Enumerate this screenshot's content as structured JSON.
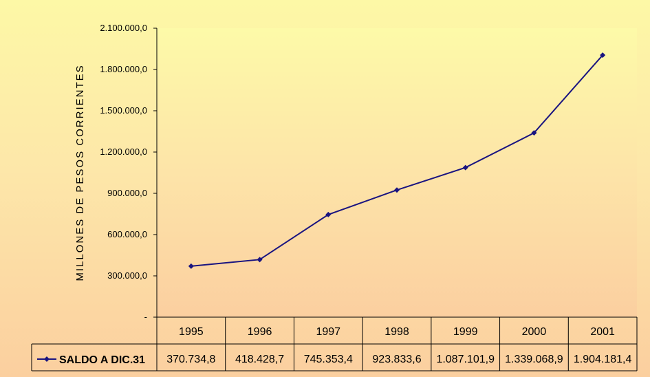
{
  "chart_data": {
    "type": "line",
    "title": "",
    "xlabel": "",
    "ylabel": "MILLONES DE PESOS CORRIENTES",
    "categories": [
      "1995",
      "1996",
      "1997",
      "1998",
      "1999",
      "2000",
      "2001"
    ],
    "series": [
      {
        "name": "SALDO A DIC.31",
        "values": [
          370734.8,
          418428.7,
          745353.4,
          923833.6,
          1087101.9,
          1339068.9,
          1904181.4
        ],
        "value_labels": [
          "370.734,8",
          "418.428,7",
          "745.353,4",
          "923.833,6",
          "1.087.101,9",
          "1.339.068,9",
          "1.904.181,4"
        ],
        "color": "#1a1480"
      }
    ],
    "ylim": [
      0,
      2100000
    ],
    "yticks": [
      0,
      300000,
      600000,
      900000,
      1200000,
      1500000,
      1800000,
      2100000
    ],
    "ytick_labels": [
      "-",
      "300.000,0",
      "600.000,0",
      "900.000,0",
      "1.200.000,0",
      "1.500.000,0",
      "1.800.000,0",
      "2.100.000,0"
    ],
    "grid": false,
    "legend": "data-table-left",
    "colors": {
      "plot_background": "#fdf8a6",
      "line": "#1a1480"
    }
  }
}
